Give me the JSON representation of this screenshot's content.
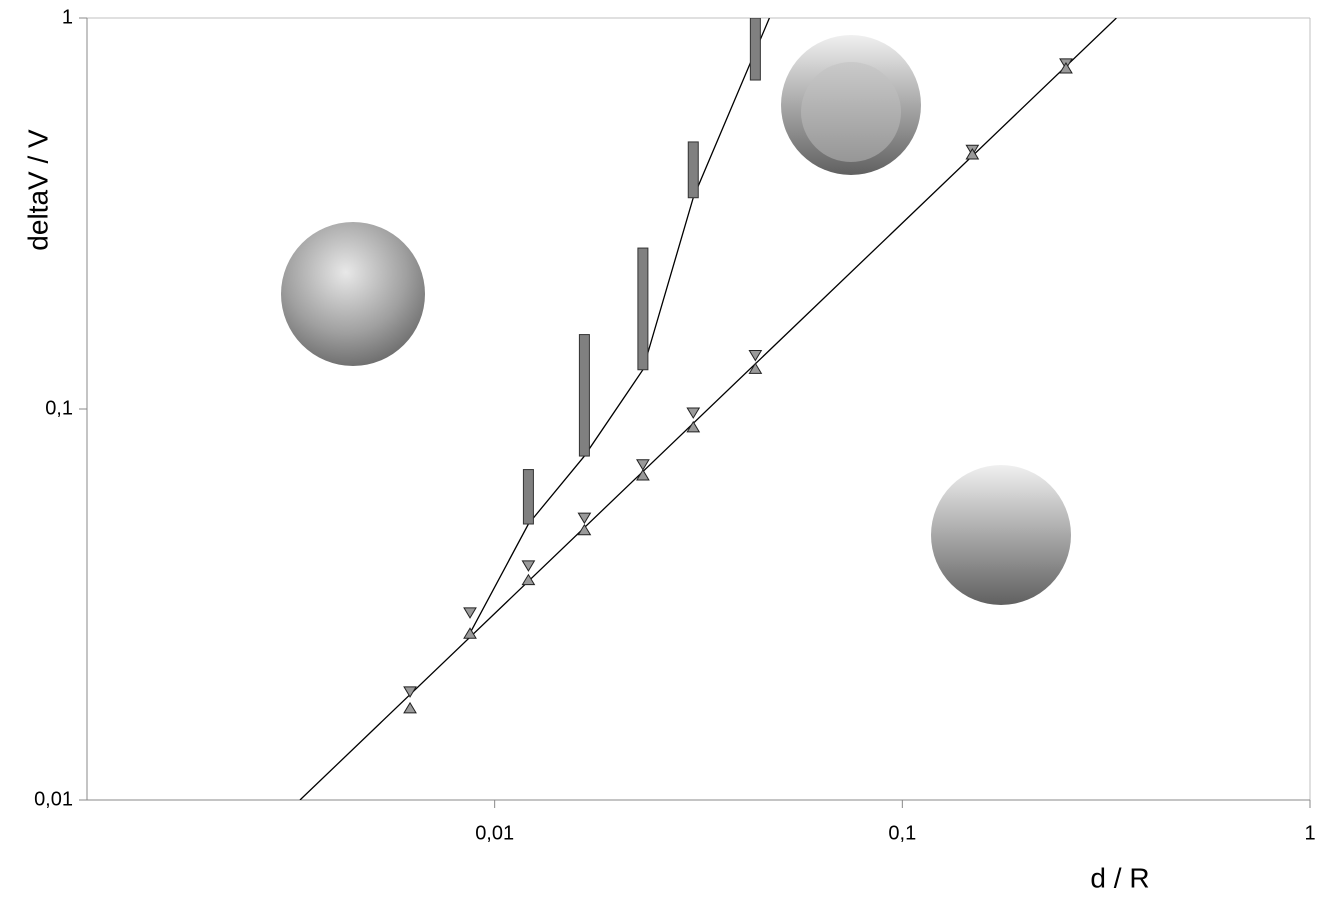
{
  "chart_data": {
    "type": "scatter",
    "xlabel": "d / R",
    "ylabel": "deltaV / V",
    "xscale": "log",
    "yscale": "log",
    "xlim": [
      0.001,
      1
    ],
    "ylim": [
      0.01,
      1
    ],
    "xticks": [
      {
        "value": 0.01,
        "label": "0,01"
      },
      {
        "value": 0.1,
        "label": "0,1"
      },
      1
    ],
    "yticks": [
      {
        "value": 0.01,
        "label": "0,01"
      },
      {
        "value": 0.1,
        "label": "0,1"
      },
      1
    ],
    "series": [
      {
        "marker": "triangles",
        "color": "#9a9a9a",
        "x": [
          0.0062,
          0.0087,
          0.0121,
          0.0166,
          0.0231,
          0.0307,
          0.0436,
          0.1485,
          0.252
        ],
        "low": [
          0.0172,
          0.0267,
          0.0366,
          0.0491,
          0.0678,
          0.09,
          0.127,
          0.449,
          0.745
        ],
        "high": [
          0.0189,
          0.0301,
          0.0397,
          0.0526,
          0.072,
          0.0977,
          0.137,
          0.459,
          0.763
        ]
      },
      {
        "marker": "bars",
        "color": "#808080",
        "x": [
          0.0121,
          0.0166,
          0.0231,
          0.0307,
          0.0436
        ],
        "low": [
          0.0508,
          0.0758,
          0.126,
          0.347,
          0.694
        ],
        "high": [
          0.07,
          0.155,
          0.258,
          0.482,
          1.0
        ]
      },
      {
        "marker": "line",
        "color": "#000000",
        "x": [
          0.00333,
          0.335
        ],
        "values": [
          0.01,
          1
        ]
      },
      {
        "marker": "line",
        "color": "#000000",
        "x": [
          0.0087,
          0.0121,
          0.0166,
          0.0231,
          0.0307,
          0.0472
        ],
        "values": [
          0.0267,
          0.0508,
          0.0758,
          0.126,
          0.347,
          1
        ]
      }
    ]
  }
}
